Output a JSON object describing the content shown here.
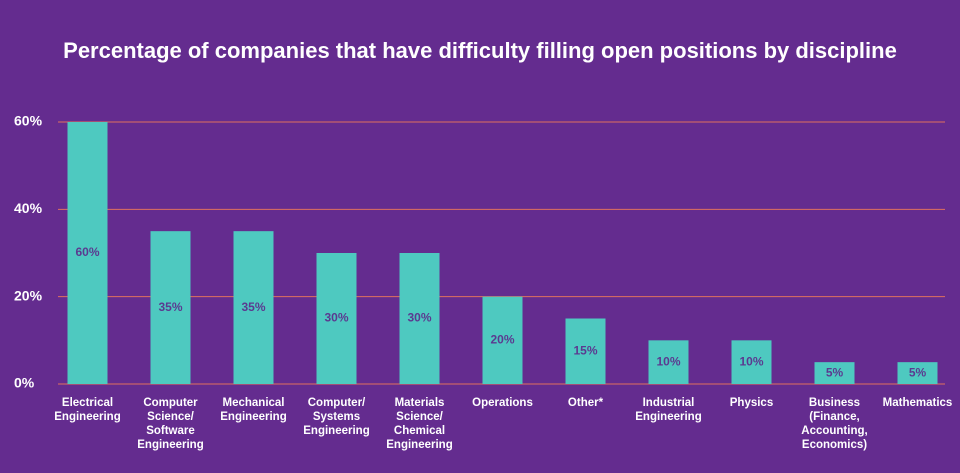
{
  "chart_data": {
    "type": "bar",
    "title": "Percentage of companies that have difficulty filling open positions by discipline",
    "categories": [
      "Electrical Engineering",
      "Computer Science/ Software Engineering",
      "Mechanical Engineering",
      "Computer/ Systems Engineering",
      "Materials Science/ Chemical Engineering",
      "Operations",
      "Other*",
      "Industrial Engineering",
      "Physics",
      "Business (Finance, Accounting, Economics)",
      "Mathematics"
    ],
    "values": [
      60,
      35,
      35,
      30,
      30,
      20,
      15,
      10,
      10,
      5,
      5
    ],
    "value_labels": [
      "60%",
      "35%",
      "35%",
      "30%",
      "30%",
      "20%",
      "15%",
      "10%",
      "10%",
      "5%",
      "5%"
    ],
    "color": "#4ec9c0",
    "ylim": [
      0,
      60
    ],
    "yticks": [
      {
        "value": 0,
        "label": "0%"
      },
      {
        "value": 20,
        "label": "20%"
      },
      {
        "value": 40,
        "label": "40%"
      },
      {
        "value": 60,
        "label": "60%"
      }
    ],
    "grid": true
  }
}
